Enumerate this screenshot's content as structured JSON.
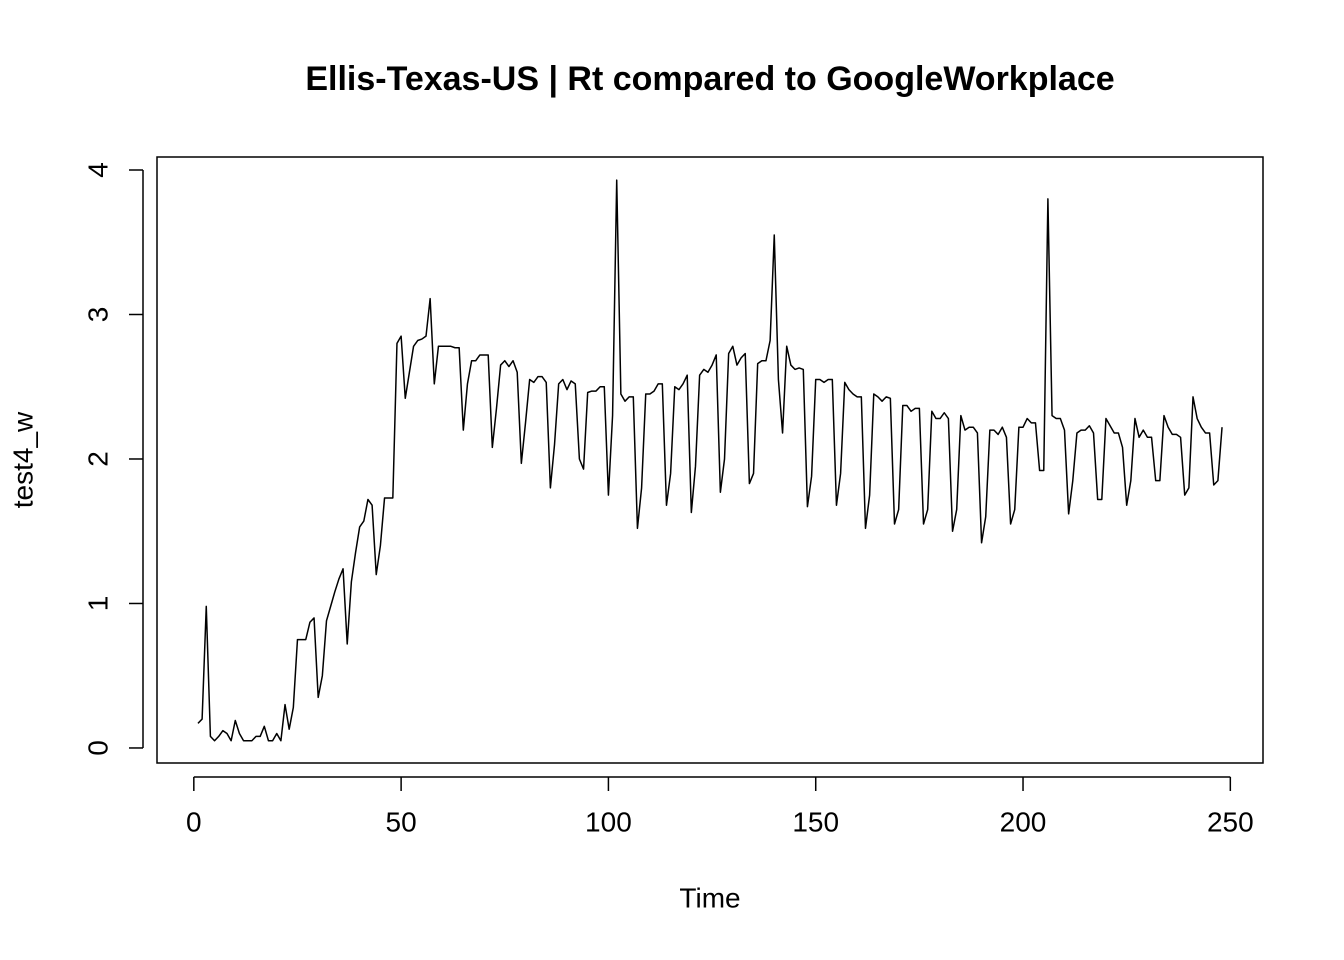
{
  "chart_data": {
    "type": "line",
    "title": "Ellis-Texas-US | Rt compared to GoogleWorkplace",
    "x_label": "Time",
    "y_label": "test4_w",
    "color": "#000000",
    "x": [
      1,
      2,
      3,
      4,
      5,
      6,
      7,
      8,
      9,
      10,
      11,
      12,
      13,
      14,
      15,
      16,
      17,
      18,
      19,
      20,
      21,
      22,
      23,
      24,
      25,
      26,
      27,
      28,
      29,
      30,
      31,
      32,
      33,
      34,
      35,
      36,
      37,
      38,
      39,
      40,
      41,
      42,
      43,
      44,
      45,
      46,
      47,
      48,
      49,
      50,
      51,
      52,
      53,
      54,
      55,
      56,
      57,
      58,
      59,
      60,
      61,
      62,
      63,
      64,
      65,
      66,
      67,
      68,
      69,
      70,
      71,
      72,
      73,
      74,
      75,
      76,
      77,
      78,
      79,
      80,
      81,
      82,
      83,
      84,
      85,
      86,
      87,
      88,
      89,
      90,
      91,
      92,
      93,
      94,
      95,
      96,
      97,
      98,
      99,
      100,
      101,
      102,
      103,
      104,
      105,
      106,
      107,
      108,
      109,
      110,
      111,
      112,
      113,
      114,
      115,
      116,
      117,
      118,
      119,
      120,
      121,
      122,
      123,
      124,
      125,
      126,
      127,
      128,
      129,
      130,
      131,
      132,
      133,
      134,
      135,
      136,
      137,
      138,
      139,
      140,
      141,
      142,
      143,
      144,
      145,
      146,
      147,
      148,
      149,
      150,
      151,
      152,
      153,
      154,
      155,
      156,
      157,
      158,
      159,
      160,
      161,
      162,
      163,
      164,
      165,
      166,
      167,
      168,
      169,
      170,
      171,
      172,
      173,
      174,
      175,
      176,
      177,
      178,
      179,
      180,
      181,
      182,
      183,
      184,
      185,
      186,
      187,
      188,
      189,
      190,
      191,
      192,
      193,
      194,
      195,
      196,
      197,
      198,
      199,
      200,
      201,
      202,
      203,
      204,
      205,
      206,
      207,
      208,
      209,
      210,
      211,
      212,
      213,
      214,
      215,
      216,
      217,
      218,
      219,
      220,
      221,
      222,
      223,
      224,
      225,
      226,
      227,
      228,
      229,
      230,
      231,
      232,
      233,
      234,
      235,
      236,
      237,
      238,
      239,
      240,
      241,
      242,
      243,
      244,
      245,
      246,
      247,
      248
    ],
    "values": [
      0.17,
      0.2,
      0.98,
      0.08,
      0.05,
      0.08,
      0.12,
      0.1,
      0.05,
      0.19,
      0.1,
      0.05,
      0.05,
      0.05,
      0.08,
      0.08,
      0.15,
      0.05,
      0.05,
      0.1,
      0.05,
      0.3,
      0.13,
      0.28,
      0.75,
      0.75,
      0.75,
      0.87,
      0.9,
      0.35,
      0.5,
      0.88,
      0.98,
      1.08,
      1.17,
      1.24,
      0.72,
      1.15,
      1.35,
      1.53,
      1.57,
      1.72,
      1.68,
      1.2,
      1.4,
      1.73,
      1.73,
      1.73,
      2.8,
      2.85,
      2.42,
      2.6,
      2.78,
      2.82,
      2.83,
      2.85,
      3.11,
      2.52,
      2.78,
      2.78,
      2.78,
      2.78,
      2.77,
      2.77,
      2.2,
      2.52,
      2.68,
      2.68,
      2.72,
      2.72,
      2.72,
      2.08,
      2.35,
      2.65,
      2.68,
      2.64,
      2.68,
      2.6,
      1.97,
      2.25,
      2.55,
      2.53,
      2.57,
      2.57,
      2.53,
      1.8,
      2.1,
      2.52,
      2.55,
      2.48,
      2.54,
      2.52,
      2.0,
      1.93,
      2.46,
      2.47,
      2.47,
      2.5,
      2.5,
      1.75,
      2.3,
      3.93,
      2.45,
      2.4,
      2.43,
      2.43,
      1.52,
      1.8,
      2.45,
      2.45,
      2.47,
      2.52,
      2.52,
      1.68,
      1.9,
      2.5,
      2.48,
      2.52,
      2.58,
      1.63,
      1.95,
      2.58,
      2.62,
      2.6,
      2.65,
      2.72,
      1.77,
      2.0,
      2.73,
      2.78,
      2.65,
      2.7,
      2.73,
      1.83,
      1.9,
      2.66,
      2.68,
      2.68,
      2.82,
      3.55,
      2.55,
      2.18,
      2.78,
      2.65,
      2.62,
      2.63,
      2.62,
      1.67,
      1.88,
      2.55,
      2.55,
      2.53,
      2.55,
      2.55,
      1.68,
      1.9,
      2.53,
      2.48,
      2.45,
      2.43,
      2.43,
      1.52,
      1.75,
      2.45,
      2.43,
      2.4,
      2.43,
      2.42,
      1.55,
      1.65,
      2.37,
      2.37,
      2.33,
      2.35,
      2.35,
      1.55,
      1.65,
      2.33,
      2.28,
      2.28,
      2.32,
      2.28,
      1.5,
      1.65,
      2.3,
      2.2,
      2.22,
      2.22,
      2.18,
      1.42,
      1.6,
      2.2,
      2.2,
      2.17,
      2.22,
      2.15,
      1.55,
      1.65,
      2.22,
      2.22,
      2.28,
      2.25,
      2.25,
      1.92,
      1.92,
      3.8,
      2.3,
      2.28,
      2.28,
      2.2,
      1.62,
      1.85,
      2.18,
      2.2,
      2.2,
      2.23,
      2.18,
      1.72,
      1.72,
      2.28,
      2.23,
      2.18,
      2.18,
      2.08,
      1.68,
      1.85,
      2.28,
      2.15,
      2.2,
      2.15,
      2.15,
      1.85,
      1.85,
      2.3,
      2.22,
      2.17,
      2.17,
      2.15,
      1.75,
      1.8,
      2.43,
      2.28,
      2.22,
      2.18,
      2.18,
      1.82,
      1.85,
      2.22
    ],
    "xlim": [
      -8.88,
      257.88
    ],
    "xticks": [
      0,
      50,
      100,
      150,
      200,
      250
    ],
    "ylim": [
      -0.104,
      4.09
    ],
    "yticks": [
      0,
      1,
      2,
      3,
      4
    ]
  }
}
